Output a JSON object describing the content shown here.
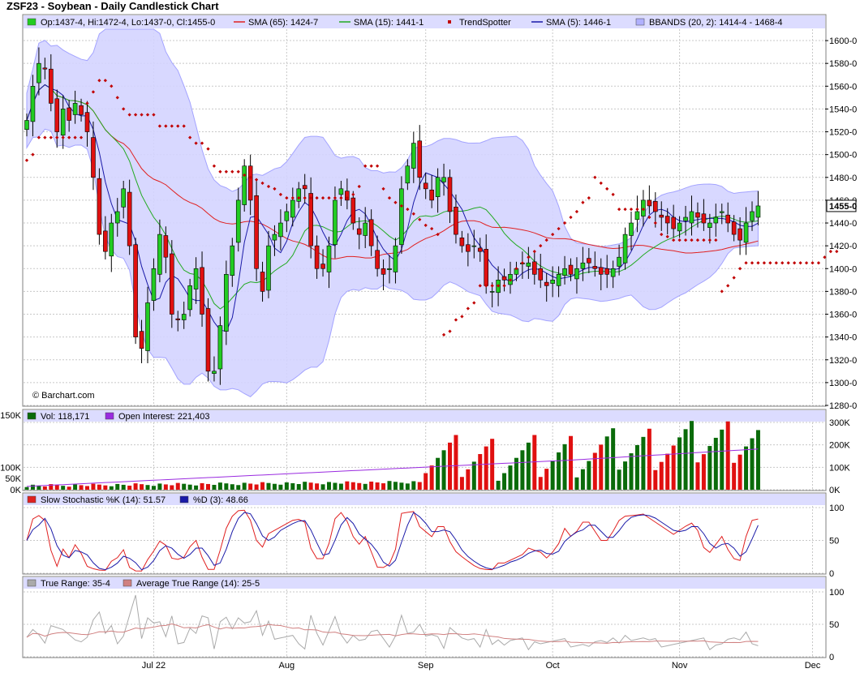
{
  "title": "ZSF23 - Soybean - Daily Candlestick Chart",
  "watermark": "© Barchart.com",
  "legends": {
    "price": [
      {
        "text": "Op:1437-4, Hi:1472-4, Lo:1437-0, Cl:1455-0",
        "color": "#22cc22",
        "kind": "box"
      },
      {
        "text": "SMA (65): 1424-7",
        "color": "#e02020",
        "kind": "line"
      },
      {
        "text": "SMA (15): 1441-1",
        "color": "#22aa22",
        "kind": "line"
      },
      {
        "text": "TrendSpotter",
        "color": "#c00000",
        "kind": "dot"
      },
      {
        "text": "SMA (5): 1446-1",
        "color": "#1a1aa8",
        "kind": "line"
      },
      {
        "text": "BBANDS (20, 2): 1414-4 - 1468-4",
        "color": "#b0b0ff",
        "kind": "box"
      }
    ],
    "volume": [
      {
        "text": "Vol: 118,171",
        "color": "#0a6b0a",
        "kind": "box"
      },
      {
        "text": "Open Interest: 221,403",
        "color": "#9a2be0",
        "kind": "box"
      }
    ],
    "stoch": [
      {
        "text": "Slow Stochastic %K (14): 51.57",
        "color": "#e02020",
        "kind": "box"
      },
      {
        "text": "%D (3): 48.66",
        "color": "#1a1aa8",
        "kind": "box"
      }
    ],
    "tr": [
      {
        "text": "True Range: 35-4",
        "color": "#aaaaaa",
        "kind": "box"
      },
      {
        "text": "Average True Range (14): 25-5",
        "color": "#d08080",
        "kind": "box"
      }
    ]
  },
  "chart_data": {
    "type": "candlestick",
    "price_axis": {
      "min": 1280,
      "max": 1610,
      "ticks": [
        "1280-0",
        "1300-0",
        "1320-0",
        "1340-0",
        "1360-0",
        "1380-0",
        "1400-0",
        "1420-0",
        "1440-0",
        "1460-0",
        "1480-0",
        "1500-0",
        "1520-0",
        "1540-0",
        "1560-0",
        "1580-0",
        "1600-0"
      ],
      "last_label": "1455-0"
    },
    "volume_axis": {
      "max": 300000,
      "left_ticks": [
        "150K",
        "100K",
        "50K",
        "0K"
      ],
      "right_ticks": [
        "300K",
        "200K",
        "100K",
        "0K"
      ]
    },
    "stoch_axis": {
      "ticks": [
        "100",
        "50",
        "0"
      ]
    },
    "tr_axis": {
      "ticks": [
        "100",
        "50",
        "0"
      ]
    },
    "x_labels": [
      {
        "label": "Jul 22",
        "index": 21
      },
      {
        "label": "Aug",
        "index": 43
      },
      {
        "label": "Sep",
        "index": 66
      },
      {
        "label": "Oct",
        "index": 87
      },
      {
        "label": "Nov",
        "index": 108
      },
      {
        "label": "Dec",
        "index": 130
      }
    ],
    "closes": [
      1530,
      1560,
      1580,
      1575,
      1545,
      1520,
      1540,
      1530,
      1545,
      1535,
      1520,
      1480,
      1430,
      1415,
      1440,
      1450,
      1470,
      1420,
      1340,
      1330,
      1370,
      1400,
      1430,
      1410,
      1360,
      1355,
      1360,
      1385,
      1400,
      1360,
      1310,
      1310,
      1350,
      1395,
      1420,
      1460,
      1490,
      1460,
      1400,
      1380,
      1420,
      1430,
      1440,
      1450,
      1460,
      1470,
      1470,
      1420,
      1400,
      1400,
      1420,
      1460,
      1470,
      1460,
      1440,
      1430,
      1440,
      1420,
      1400,
      1395,
      1400,
      1420,
      1470,
      1490,
      1510,
      1480,
      1470,
      1460,
      1480,
      1480,
      1450,
      1430,
      1420,
      1415,
      1420,
      1415,
      1385,
      1380,
      1390,
      1390,
      1395,
      1400,
      1405,
      1405,
      1395,
      1390,
      1385,
      1390,
      1395,
      1400,
      1395,
      1400,
      1405,
      1405,
      1400,
      1395,
      1395,
      1400,
      1410,
      1430,
      1440,
      1450,
      1460,
      1455,
      1450,
      1445,
      1440,
      1435,
      1440,
      1445,
      1450,
      1445,
      1440,
      1440,
      1445,
      1450,
      1440,
      1430,
      1425,
      1440,
      1450,
      1455
    ],
    "trendspotter": [
      [
        0,
        1495
      ],
      [
        1,
        1500
      ],
      [
        2,
        1515
      ],
      [
        3,
        1515
      ],
      [
        4,
        1515
      ],
      [
        5,
        1515
      ],
      [
        6,
        1515
      ],
      [
        7,
        1515
      ],
      [
        8,
        1515
      ],
      [
        9,
        1515
      ],
      [
        10,
        1545
      ],
      [
        11,
        1555
      ],
      [
        12,
        1565
      ],
      [
        13,
        1565
      ],
      [
        14,
        1560
      ],
      [
        15,
        1550
      ],
      [
        16,
        1540
      ],
      [
        17,
        1535
      ],
      [
        18,
        1535
      ],
      [
        19,
        1535
      ],
      [
        20,
        1535
      ],
      [
        21,
        1535
      ],
      [
        22,
        1525
      ],
      [
        23,
        1525
      ],
      [
        24,
        1525
      ],
      [
        25,
        1525
      ],
      [
        26,
        1525
      ],
      [
        27,
        1515
      ],
      [
        28,
        1510
      ],
      [
        29,
        1510
      ],
      [
        30,
        1505
      ],
      [
        31,
        1490
      ],
      [
        32,
        1485
      ],
      [
        33,
        1485
      ],
      [
        34,
        1485
      ],
      [
        35,
        1485
      ],
      [
        36,
        1482
      ],
      [
        37,
        1480
      ],
      [
        38,
        1478
      ],
      [
        39,
        1475
      ],
      [
        40,
        1472
      ],
      [
        41,
        1470
      ],
      [
        42,
        1465
      ],
      [
        43,
        1462
      ],
      [
        44,
        1462
      ],
      [
        45,
        1462
      ],
      [
        46,
        1462
      ],
      [
        47,
        1462
      ],
      [
        48,
        1462
      ],
      [
        49,
        1462
      ],
      [
        50,
        1462
      ],
      [
        51,
        1462
      ],
      [
        52,
        1462
      ],
      [
        53,
        1462
      ],
      [
        54,
        1465
      ],
      [
        55,
        1472
      ],
      [
        56,
        1490
      ],
      [
        57,
        1490
      ],
      [
        58,
        1490
      ],
      [
        59,
        1470
      ],
      [
        60,
        1462
      ],
      [
        61,
        1458
      ],
      [
        62,
        1455
      ],
      [
        63,
        1452
      ],
      [
        64,
        1448
      ],
      [
        65,
        1443
      ],
      [
        66,
        1438
      ],
      [
        67,
        1435
      ],
      [
        68,
        1430
      ],
      [
        69,
        1342
      ],
      [
        70,
        1345
      ],
      [
        71,
        1355
      ],
      [
        72,
        1358
      ],
      [
        73,
        1365
      ],
      [
        74,
        1370
      ],
      [
        75,
        1385
      ],
      [
        76,
        1385
      ],
      [
        77,
        1385
      ],
      [
        78,
        1385
      ],
      [
        79,
        1385
      ],
      [
        80,
        1390
      ],
      [
        81,
        1400
      ],
      [
        82,
        1405
      ],
      [
        83,
        1410
      ],
      [
        84,
        1415
      ],
      [
        85,
        1420
      ],
      [
        86,
        1425
      ],
      [
        87,
        1430
      ],
      [
        88,
        1435
      ],
      [
        89,
        1440
      ],
      [
        90,
        1445
      ],
      [
        91,
        1450
      ],
      [
        92,
        1458
      ],
      [
        93,
        1462
      ],
      [
        94,
        1480
      ],
      [
        95,
        1475
      ],
      [
        96,
        1470
      ],
      [
        97,
        1465
      ],
      [
        98,
        1452
      ],
      [
        99,
        1452
      ],
      [
        100,
        1452
      ],
      [
        101,
        1452
      ],
      [
        102,
        1452
      ],
      [
        103,
        1445
      ],
      [
        104,
        1440
      ],
      [
        105,
        1430
      ],
      [
        106,
        1428
      ],
      [
        107,
        1425
      ],
      [
        108,
        1425
      ],
      [
        109,
        1425
      ],
      [
        110,
        1425
      ],
      [
        111,
        1425
      ],
      [
        112,
        1425
      ],
      [
        113,
        1425
      ],
      [
        114,
        1425
      ],
      [
        115,
        1380
      ],
      [
        116,
        1385
      ],
      [
        117,
        1392
      ],
      [
        118,
        1400
      ],
      [
        119,
        1405
      ],
      [
        120,
        1405
      ],
      [
        121,
        1405
      ],
      [
        122,
        1405
      ],
      [
        123,
        1405
      ],
      [
        124,
        1405
      ],
      [
        125,
        1405
      ],
      [
        126,
        1405
      ],
      [
        127,
        1405
      ],
      [
        128,
        1405
      ],
      [
        129,
        1405
      ],
      [
        130,
        1405
      ],
      [
        131,
        1405
      ],
      [
        132,
        1410
      ],
      [
        133,
        1415
      ],
      [
        134,
        1415
      ]
    ]
  }
}
